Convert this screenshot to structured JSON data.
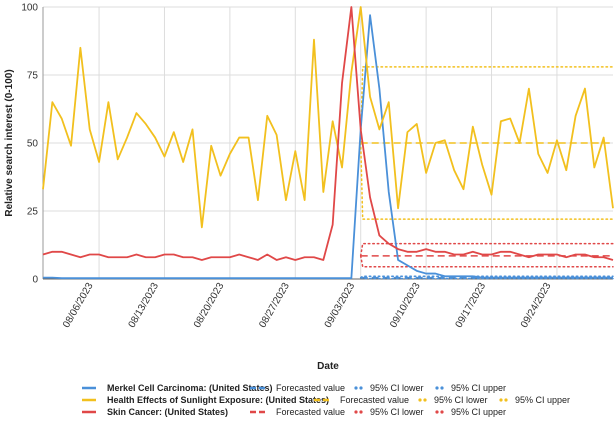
{
  "chart_data": {
    "type": "line",
    "xlabel": "Date",
    "ylabel": "Relative search interest (0-100)",
    "ylim": [
      0,
      100
    ],
    "y_ticks": [
      0,
      25,
      50,
      75,
      100
    ],
    "x_range": [
      "2023-07-31",
      "2023-09-30"
    ],
    "x_tick_labels": [
      "08/06/2023",
      "08/13/2023",
      "08/20/2023",
      "08/27/2023",
      "09/03/2023",
      "09/10/2023",
      "09/17/2023",
      "09/24/2023"
    ],
    "x_tick_dates": [
      "2023-08-06",
      "2023-08-13",
      "2023-08-20",
      "2023-08-27",
      "2023-09-03",
      "2023-09-10",
      "2023-09-17",
      "2023-09-24"
    ],
    "grid": true,
    "legend_position": "bottom",
    "series": [
      {
        "name": "Merkel Cell Carcinoma: (United States)",
        "color": "#4a90d9",
        "start_date": "2023-07-31",
        "values": [
          0.5,
          0.5,
          0.3,
          0.3,
          0.3,
          0.3,
          0.3,
          0.3,
          0.3,
          0.3,
          0.3,
          0.3,
          0.3,
          0.3,
          0.3,
          0.3,
          0.3,
          0.3,
          0.3,
          0.3,
          0.3,
          0.3,
          0.3,
          0.3,
          0.3,
          0.3,
          0.3,
          0.3,
          0.3,
          0.3,
          0.3,
          0.3,
          0.3,
          0.3,
          55,
          97,
          70,
          32,
          7,
          5,
          3,
          2,
          2,
          1,
          1,
          1,
          1,
          0.5,
          0.5,
          0.5,
          0.5,
          0.5,
          0.5,
          0.5,
          0.5,
          0.5,
          0.5,
          0.5,
          0.5,
          0.5,
          0.5,
          0.5
        ]
      },
      {
        "name": "Health Effects of Sunlight Exposure: (United States)",
        "color": "#f2c01e",
        "start_date": "2023-07-31",
        "values": [
          33,
          65,
          59,
          49,
          85,
          55,
          43,
          65,
          44,
          52,
          61,
          57,
          52,
          45,
          54,
          43,
          55,
          19,
          49,
          38,
          46,
          52,
          52,
          29,
          60,
          53,
          29,
          47,
          29,
          88,
          32,
          58,
          41,
          76,
          100,
          67,
          55,
          65,
          26,
          54,
          57,
          39,
          50,
          51,
          40,
          33,
          56,
          42,
          31,
          58,
          59,
          50,
          70,
          46,
          39,
          51,
          40,
          60,
          70,
          41,
          52,
          26
        ]
      },
      {
        "name": "Skin Cancer: (United States)",
        "color": "#e04848",
        "start_date": "2023-07-31",
        "values": [
          9,
          10,
          10,
          9,
          8,
          9,
          9,
          8,
          8,
          8,
          9,
          8,
          8,
          9,
          9,
          8,
          8,
          7,
          8,
          8,
          8,
          9,
          8,
          7,
          9,
          7,
          8,
          7,
          8,
          8,
          7,
          20,
          72,
          100,
          55,
          30,
          16,
          13,
          11,
          10,
          10,
          11,
          10,
          10,
          9,
          9,
          10,
          9,
          9,
          10,
          10,
          9,
          8,
          9,
          9,
          9,
          8,
          9,
          9,
          8,
          8,
          7
        ]
      }
    ],
    "forecasts": [
      {
        "series": "Merkel Cell Carcinoma: (United States)",
        "start_date": "2023-09-03",
        "end_date": "2023-09-30",
        "forecast": 0.5,
        "ci_lower": 0.2,
        "ci_upper": 1,
        "color": "#4a90d9"
      },
      {
        "series": "Health Effects of Sunlight Exposure: (United States)",
        "start_date": "2023-09-03",
        "end_date": "2023-09-30",
        "forecast": 50,
        "ci_lower": 22,
        "ci_upper": 78,
        "color": "#f2c01e"
      },
      {
        "series": "Skin Cancer: (United States)",
        "start_date": "2023-09-03",
        "end_date": "2023-09-30",
        "forecast": 8.5,
        "ci_lower": 4.5,
        "ci_upper": 13,
        "color": "#e04848"
      }
    ]
  },
  "legend": {
    "rows": [
      {
        "series_label": "Merkel Cell Carcinoma: (United States)",
        "forecast_label": "Forecasted value",
        "ci_lower_label": "95% CI lower",
        "ci_upper_label": "95% CI upper",
        "color": "#4a90d9"
      },
      {
        "series_label": "Health Effects of Sunlight Exposure: (United States)",
        "forecast_label": "Forecasted value",
        "ci_lower_label": "95% CI lower",
        "ci_upper_label": "95% CI upper",
        "color": "#f2c01e"
      },
      {
        "series_label": "Skin Cancer: (United States)",
        "forecast_label": "Forecasted value",
        "ci_lower_label": "95% CI lower",
        "ci_upper_label": "95% CI upper",
        "color": "#e04848"
      }
    ]
  }
}
